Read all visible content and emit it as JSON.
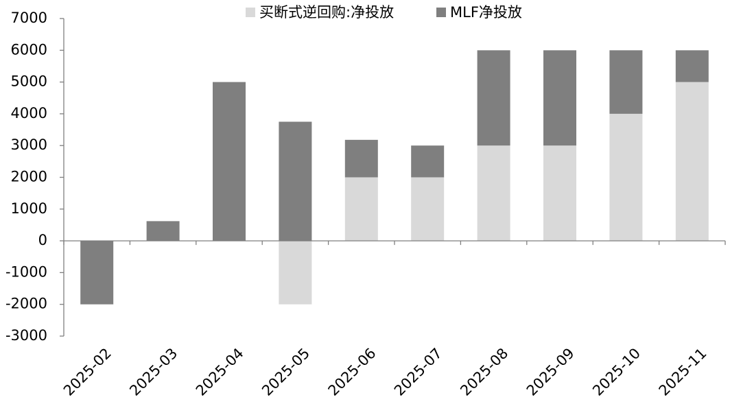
{
  "chart_data": {
    "type": "stacked-bar",
    "categories": [
      "2025-02",
      "2025-03",
      "2025-04",
      "2025-05",
      "2025-06",
      "2025-07",
      "2025-08",
      "2025-09",
      "2025-10",
      "2025-11"
    ],
    "series": [
      {
        "name": "买断式逆回购:净投放",
        "color": "#d9d9d9",
        "values": [
          0,
          0,
          0,
          -2000,
          2000,
          2000,
          3000,
          3000,
          4000,
          5000
        ]
      },
      {
        "name": "MLF净投放",
        "color": "#7f7f7f",
        "values": [
          -2000,
          620,
          5000,
          3750,
          1180,
          1000,
          3000,
          3000,
          2000,
          1000
        ]
      }
    ],
    "ylim": [
      -3000,
      7000
    ],
    "yticks": [
      -3000,
      -2000,
      -1000,
      0,
      1000,
      2000,
      3000,
      4000,
      5000,
      6000,
      7000
    ],
    "grid": false,
    "legend": "top"
  }
}
